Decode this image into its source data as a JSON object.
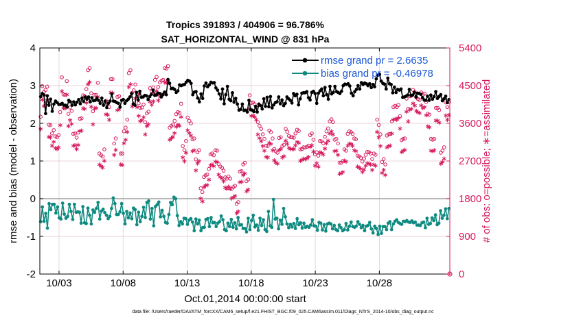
{
  "chart_data": {
    "type": "line",
    "title_line1": "Tropics 391893 / 404906 = 96.786%",
    "title_line2": "SAT_HORIZONTAL_WIND @ 831 hPa",
    "xlabel": "Oct.01,2014 00:00:00 start",
    "ylabel_left": "rmse and bias (model - observation)",
    "ylabel_right": "# of obs: o=possible; ∗=assimilated",
    "xlim": [
      1.5,
      33.5
    ],
    "ylim_left": [
      -2,
      4
    ],
    "ylim_right": [
      0,
      5400
    ],
    "x_ticks": [
      3,
      8,
      13,
      18,
      23,
      28
    ],
    "x_tick_labels": [
      "10/03",
      "10/08",
      "10/13",
      "10/18",
      "10/23",
      "10/28"
    ],
    "y_ticks_left": [
      -2,
      -1,
      0,
      1,
      2,
      3,
      4
    ],
    "y_tick_labels_left": [
      "-2",
      "-1",
      "0",
      "1",
      "2",
      "3",
      "4"
    ],
    "y_ticks_right": [
      0,
      900,
      1800,
      2700,
      3600,
      4500,
      5400
    ],
    "y_tick_labels_right": [
      "0",
      "900",
      "1800",
      "2700",
      "3600",
      "4500",
      "5400"
    ],
    "colors": {
      "rmse": "#000000",
      "bias": "#0f8a80",
      "obs": "#d6185e",
      "zero_line": "#a0a0a0"
    },
    "legend": [
      {
        "name": "rmse grand pr = 2.6635",
        "color": "#1a57d6"
      },
      {
        "name": "bias grand pr = -0.46978",
        "color": "#1a57d6"
      }
    ],
    "series": [
      {
        "name": "rmse",
        "axis": "left",
        "values": [
          2.71,
          2.79,
          2.75,
          2.26,
          2.73,
          2.48,
          2.64,
          2.32,
          2.51,
          2.59,
          2.55,
          2.5,
          2.5,
          2.53,
          2.48,
          2.48,
          2.43,
          2.61,
          2.57,
          2.48,
          2.57,
          2.49,
          2.56,
          2.63,
          2.52,
          2.67,
          2.58,
          2.7,
          2.64,
          2.7,
          2.57,
          2.68,
          2.6,
          2.61,
          2.67,
          2.61,
          2.53,
          2.67,
          2.48,
          2.59,
          2.42,
          2.53,
          2.59,
          2.78,
          2.59,
          2.58,
          2.55,
          2.53,
          2.43,
          2.61,
          2.63,
          2.53,
          2.6,
          2.64,
          2.7,
          2.79,
          2.51,
          2.48,
          2.82,
          2.62,
          2.85,
          2.69,
          2.7,
          2.74,
          2.73,
          2.63,
          2.71,
          2.77,
          2.88,
          2.74,
          2.75,
          2.8,
          2.79,
          2.7,
          2.76,
          2.83,
          2.76,
          3.16,
          3.06,
          2.92,
          2.93,
          2.9,
          2.82,
          2.86,
          3.02,
          3.0,
          3.02,
          3.03,
          3.09,
          3.14,
          3.12,
          3.06,
          2.76,
          2.83,
          2.84,
          2.67,
          2.57,
          2.78,
          2.66,
          2.99,
          3.07,
          2.97,
          3.02,
          3.09,
          3.07,
          3.08,
          2.94,
          2.88,
          2.78,
          2.65,
          2.91,
          2.52,
          2.76,
          2.98,
          2.64,
          2.6,
          2.81,
          2.56,
          2.66,
          2.51,
          2.35,
          2.37,
          2.51,
          2.34,
          2.35,
          2.3,
          2.61,
          2.36,
          2.35,
          2.31,
          2.45,
          2.3,
          2.51,
          2.47,
          2.38,
          2.65,
          2.45,
          2.69,
          2.44,
          2.71,
          2.41,
          2.49,
          2.55,
          2.57,
          2.7,
          2.52,
          2.62,
          2.47,
          2.53,
          2.7,
          2.65,
          2.61,
          2.54,
          2.79,
          2.73,
          2.77,
          2.49,
          2.65,
          2.8,
          2.81,
          2.81,
          2.84,
          2.68,
          2.62,
          2.82,
          2.85,
          2.79,
          2.53,
          2.8,
          2.86,
          2.91,
          2.73,
          2.95,
          2.76,
          2.64,
          2.98,
          2.78,
          2.82,
          2.98,
          2.84,
          2.82,
          2.79,
          2.85,
          3.0,
          3.04,
          3.03,
          3.05,
          2.99,
          2.8,
          2.73,
          2.84,
          2.9,
          3.0,
          2.91,
          3.08,
          3.03,
          3.07,
          3.05,
          3.0,
          3.05,
          2.95,
          3.03,
          2.97,
          3.18,
          3.28,
          3.3,
          3.12,
          3.06,
          3.04,
          2.91,
          3.2,
          3.05,
          3.03,
          2.81,
          2.96,
          2.82,
          2.9,
          2.88,
          2.91,
          2.69,
          2.7,
          2.72,
          2.75,
          2.9,
          2.74,
          2.75,
          2.82,
          2.7,
          2.8,
          2.79,
          2.77,
          2.68,
          2.62,
          2.61,
          2.72,
          2.61,
          2.75,
          2.64,
          2.71,
          2.84,
          2.66,
          2.71,
          2.76,
          2.6,
          2.65,
          2.72,
          2.55,
          2.63
        ]
      },
      {
        "name": "bias",
        "axis": "left",
        "values": [
          -0.61,
          -0.22,
          -0.6,
          -0.39,
          -0.78,
          -0.13,
          -0.29,
          -0.15,
          -0.15,
          -0.38,
          -0.22,
          -0.51,
          -0.54,
          -0.12,
          -0.41,
          -0.52,
          -0.47,
          -0.15,
          -0.34,
          -0.55,
          -0.15,
          -0.36,
          -0.35,
          -0.36,
          -0.65,
          -0.21,
          -0.64,
          -0.66,
          -0.25,
          -0.44,
          -0.67,
          -0.3,
          -0.36,
          -0.26,
          -0.1,
          -0.54,
          -0.33,
          -0.28,
          -0.37,
          -0.44,
          -0.53,
          -0.47,
          -0.26,
          0.02,
          -0.13,
          -0.42,
          -0.42,
          -0.35,
          -0.13,
          -0.39,
          -0.67,
          -0.34,
          -0.51,
          -0.38,
          -0.53,
          -0.25,
          -0.29,
          -0.69,
          -0.36,
          -0.61,
          -0.47,
          -0.23,
          -0.5,
          -0.1,
          -0.06,
          -0.54,
          -0.26,
          -0.72,
          -0.21,
          -0.16,
          -0.09,
          -0.48,
          -0.31,
          -0.47,
          -0.63,
          -0.65,
          -0.42,
          -0.1,
          -0.16,
          0.04,
          0.0,
          -0.45,
          -0.71,
          -0.61,
          -0.67,
          -0.52,
          -0.53,
          -0.68,
          -0.57,
          -0.53,
          -0.62,
          -0.85,
          -0.54,
          -0.67,
          -0.57,
          -0.85,
          -0.77,
          -0.76,
          -0.55,
          -0.53,
          -0.74,
          -0.5,
          -0.64,
          -0.63,
          -0.74,
          -0.65,
          -0.61,
          -0.46,
          -0.56,
          -0.82,
          -0.85,
          -0.65,
          -0.74,
          -0.55,
          -0.76,
          -0.64,
          -0.8,
          -0.5,
          -0.7,
          -0.69,
          -0.79,
          -0.79,
          -0.88,
          -0.52,
          -0.82,
          -0.58,
          -0.44,
          -0.75,
          -0.7,
          -0.84,
          -0.52,
          -0.71,
          -0.56,
          -0.82,
          -0.87,
          -0.34,
          -0.72,
          -0.76,
          -0.02,
          -0.54,
          -0.52,
          -0.8,
          -0.57,
          -0.68,
          -0.26,
          -0.48,
          -0.67,
          -0.77,
          -0.68,
          -0.75,
          -0.66,
          -0.79,
          -0.53,
          -0.69,
          -0.64,
          -0.78,
          -0.65,
          -0.76,
          -0.73,
          -0.76,
          -0.7,
          -0.56,
          -0.72,
          -0.73,
          -0.84,
          -0.63,
          -0.65,
          -0.83,
          -0.69,
          -0.86,
          -0.67,
          -0.65,
          -0.67,
          -0.8,
          -0.71,
          -0.82,
          -0.85,
          -0.7,
          -0.77,
          -0.85,
          -0.82,
          -0.66,
          -0.83,
          -0.73,
          -0.62,
          -0.74,
          -0.76,
          -0.73,
          -0.61,
          -0.68,
          -0.77,
          -0.71,
          -0.85,
          -0.73,
          -0.71,
          -0.63,
          -0.8,
          -0.91,
          -0.73,
          -0.79,
          -0.95,
          -0.73,
          -0.92,
          -0.74,
          -0.74,
          -0.82,
          -0.65,
          -0.61,
          -0.82,
          -0.67,
          -0.6,
          -0.56,
          -0.63,
          -0.66,
          -0.68,
          -0.6,
          -0.61,
          -0.58,
          -0.62,
          -0.63,
          -0.59,
          -0.64,
          -0.62,
          -0.7,
          -0.7,
          -0.71,
          -0.64,
          -0.62,
          -0.77,
          -0.52,
          -0.68,
          -0.66,
          -0.51,
          -0.58,
          -0.43,
          -0.69,
          -0.65,
          -0.32,
          -0.52,
          -0.44,
          -0.27,
          -0.53,
          -0.26
        ]
      },
      {
        "name": "possible",
        "axis": "right",
        "values": [
          3660,
          4390,
          4250,
          4300,
          4380,
          3470,
          3460,
          3260,
          3340,
          3190,
          3170,
          3220,
          3770,
          4600,
          4190,
          4180,
          4510,
          3730,
          3880,
          3800,
          3250,
          3260,
          3160,
          3280,
          3610,
          3620,
          4170,
          4150,
          4320,
          4770,
          4820,
          4220,
          3790,
          4180,
          4180,
          4470,
          2780,
          2740,
          2710,
          2880,
          4040,
          4010,
          3890,
          4560,
          4560,
          3020,
          3140,
          4130,
          4150,
          2780,
          2780,
          3310,
          3400,
          3590,
          4700,
          4770,
          4230,
          4290,
          4430,
          4200,
          3980,
          3870,
          3880,
          3950,
          3530,
          3740,
          3780,
          4340,
          4270,
          4360,
          4540,
          4610,
          4370,
          4480,
          4520,
          4540,
          4820,
          4810,
          4870,
          3400,
          3440,
          3470,
          3560,
          3720,
          3770,
          3750,
          3970,
          2960,
          2860,
          3080,
          3640,
          3560,
          3500,
          3120,
          3140,
          2640,
          2810,
          2860,
          1950,
          1860,
          2220,
          2260,
          2280,
          2410,
          2760,
          2780,
          2740,
          2860,
          2850,
          2530,
          2470,
          2440,
          2370,
          2210,
          2180,
          2230,
          2180,
          1940,
          1980,
          2010,
          1580,
          1620,
          2350,
          2360,
          2520,
          2560,
          2120,
          2160,
          4170,
          3990,
          4000,
          3960,
          3890,
          3530,
          3440,
          3370,
          3240,
          3130,
          2970,
          2960,
          3330,
          3290,
          3140,
          2890,
          2830,
          2800,
          3150,
          3170,
          2960,
          2990,
          3370,
          3300,
          3200,
          3170,
          3170,
          3160,
          3260,
          3350,
          3320,
          2880,
          2890,
          2930,
          2920,
          2940,
          2970,
          3220,
          3260,
          3110,
          2760,
          2810,
          2730,
          3080,
          3070,
          3030,
          3180,
          3310,
          3380,
          3550,
          3600,
          3530,
          3110,
          3130,
          3020,
          2560,
          2560,
          2600,
          2880,
          2850,
          3250,
          3310,
          3290,
          3250,
          3140,
          3120,
          2730,
          2710,
          2680,
          2590,
          2660,
          2750,
          2820,
          2810,
          2780,
          2650,
          2780,
          2750,
          3590,
          3460,
          3240,
          2580,
          2650,
          2520,
          3210,
          3240,
          3250,
          3550,
          3890,
          3920,
          3890,
          3940,
          3670,
          3100,
          3130,
          3140,
          4090,
          3850,
          4150,
          4160,
          4300,
          4250,
          4120,
          4080,
          4060,
          4240,
          4190,
          4210,
          4010,
          3730,
          3710,
          3130,
          3110,
          3130,
          3870,
          3870,
          3820,
          2800,
          2850,
          2930,
          4000,
          3890,
          4010
        ]
      },
      {
        "name": "assimilated",
        "axis": "right",
        "values": [
          3530,
          4230,
          4080,
          4140,
          4220,
          3340,
          3330,
          3130,
          3220,
          3070,
          3050,
          3090,
          3620,
          4430,
          4030,
          4020,
          4350,
          3600,
          3740,
          3650,
          3130,
          3140,
          3050,
          3150,
          3480,
          3490,
          4020,
          4010,
          4150,
          4600,
          4650,
          4060,
          3640,
          4020,
          4030,
          4300,
          2680,
          2640,
          2610,
          2770,
          3880,
          3870,
          3750,
          4400,
          4390,
          2910,
          3030,
          3980,
          4000,
          2680,
          2670,
          3190,
          3270,
          3460,
          4530,
          4600,
          4070,
          4130,
          4260,
          4050,
          3840,
          3720,
          3740,
          3810,
          3400,
          3600,
          3640,
          4180,
          4110,
          4190,
          4370,
          4440,
          4210,
          4310,
          4350,
          4370,
          4640,
          4640,
          4700,
          3270,
          3310,
          3340,
          3430,
          3580,
          3630,
          3610,
          3820,
          2850,
          2760,
          2960,
          3500,
          3430,
          3370,
          3000,
          3020,
          2540,
          2710,
          2760,
          1870,
          1800,
          2140,
          2180,
          2190,
          2320,
          2660,
          2680,
          2640,
          2750,
          2740,
          2440,
          2380,
          2350,
          2280,
          2130,
          2100,
          2150,
          2100,
          1870,
          1900,
          1930,
          1520,
          1560,
          2260,
          2270,
          2430,
          2470,
          2040,
          2080,
          4010,
          3840,
          3850,
          3820,
          3750,
          3400,
          3310,
          3240,
          3120,
          3010,
          2860,
          2850,
          3200,
          3170,
          3020,
          2780,
          2730,
          2700,
          3030,
          3050,
          2850,
          2880,
          3250,
          3180,
          3080,
          3050,
          3050,
          3050,
          3140,
          3220,
          3200,
          2770,
          2790,
          2820,
          2810,
          2830,
          2860,
          3100,
          3140,
          2990,
          2650,
          2710,
          2630,
          2970,
          2960,
          2920,
          3060,
          3190,
          3250,
          3420,
          3470,
          3400,
          3000,
          3010,
          2910,
          2460,
          2470,
          2500,
          2770,
          2750,
          3130,
          3180,
          3170,
          3130,
          3020,
          3000,
          2630,
          2610,
          2580,
          2500,
          2560,
          2650,
          2710,
          2700,
          2680,
          2550,
          2680,
          2650,
          3460,
          3330,
          3120,
          2480,
          2550,
          2430,
          3090,
          3120,
          3130,
          3420,
          3750,
          3770,
          3750,
          3790,
          3540,
          2980,
          3010,
          3030,
          3940,
          3710,
          3990,
          4010,
          4140,
          4090,
          3960,
          3930,
          3910,
          4090,
          4030,
          4050,
          3860,
          3590,
          3570,
          3010,
          3000,
          3020,
          3730,
          3730,
          3680,
          2700,
          2740,
          2820,
          3850,
          3750,
          3860
        ]
      }
    ],
    "footer": "data file: /Users/raeder/DAI/ATM_forcXX/CAM6_setup/f.e21.FHIST_BGC.f09_025.CAM6assim.011/Diags_NTrS_2014-10/obs_diag_output.nc"
  }
}
